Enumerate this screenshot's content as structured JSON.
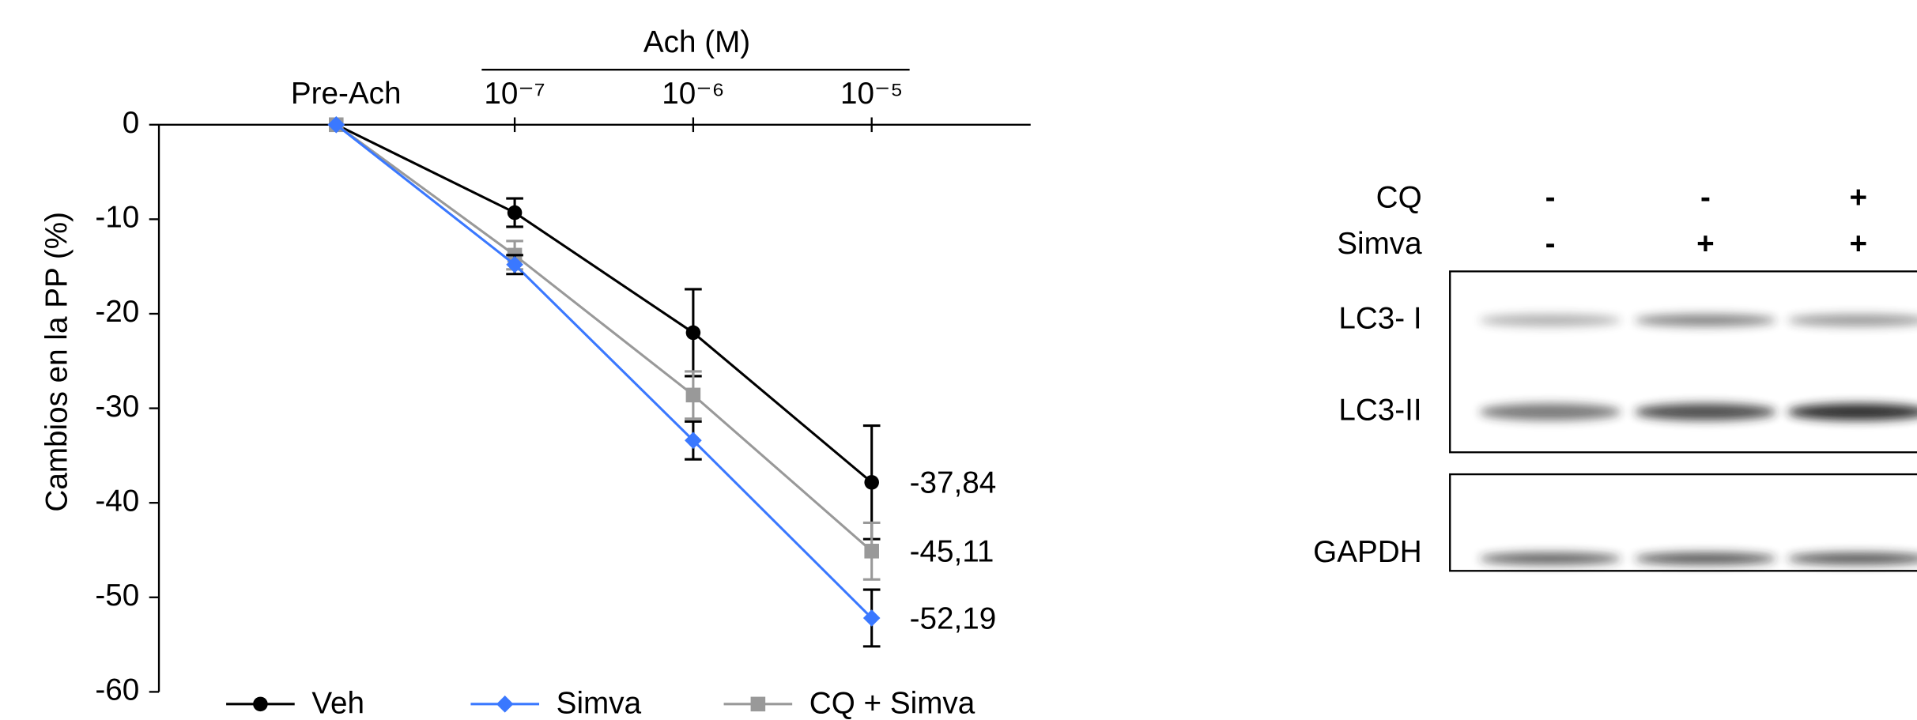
{
  "chart_data": {
    "type": "line",
    "y_label": "Cambios en la PP (%)",
    "x_group_label": "Ach (M)",
    "categories": [
      "Pre-Ach",
      "10⁻⁷",
      "10⁻⁶",
      "10⁻⁵"
    ],
    "ylim": [
      -60,
      0
    ],
    "yticks": [
      0,
      -10,
      -20,
      -30,
      -40,
      -50,
      -60
    ],
    "series": [
      {
        "name": "Veh",
        "color": "#000000",
        "marker": "circle",
        "values": [
          0,
          -9.3,
          -22,
          -37.84
        ],
        "errors": [
          null,
          1.5,
          4.6,
          6
        ],
        "value_labels": [
          null,
          null,
          null,
          "-37,84"
        ]
      },
      {
        "name": "Simva",
        "color": "#3a78ff",
        "marker": "diamond",
        "values": [
          0,
          -14.8,
          -33.4,
          -52.19
        ],
        "errors": [
          null,
          1,
          2,
          3
        ],
        "value_labels": [
          null,
          null,
          null,
          "-52,19"
        ]
      },
      {
        "name": "CQ + Simva",
        "color": "#999999",
        "marker": "square",
        "values": [
          0,
          -13.8,
          -28.6,
          -45.11
        ],
        "errors": [
          null,
          1.5,
          2.5,
          3
        ],
        "value_labels": [
          null,
          null,
          null,
          "-45,11"
        ]
      }
    ]
  },
  "blot": {
    "rows": [
      {
        "label": "CQ",
        "lanes": [
          "-",
          "-",
          "+"
        ]
      },
      {
        "label": "Simva",
        "lanes": [
          "-",
          "+",
          "+"
        ]
      }
    ],
    "bands": [
      "LC3- I",
      "LC3-II",
      "GAPDH"
    ]
  }
}
